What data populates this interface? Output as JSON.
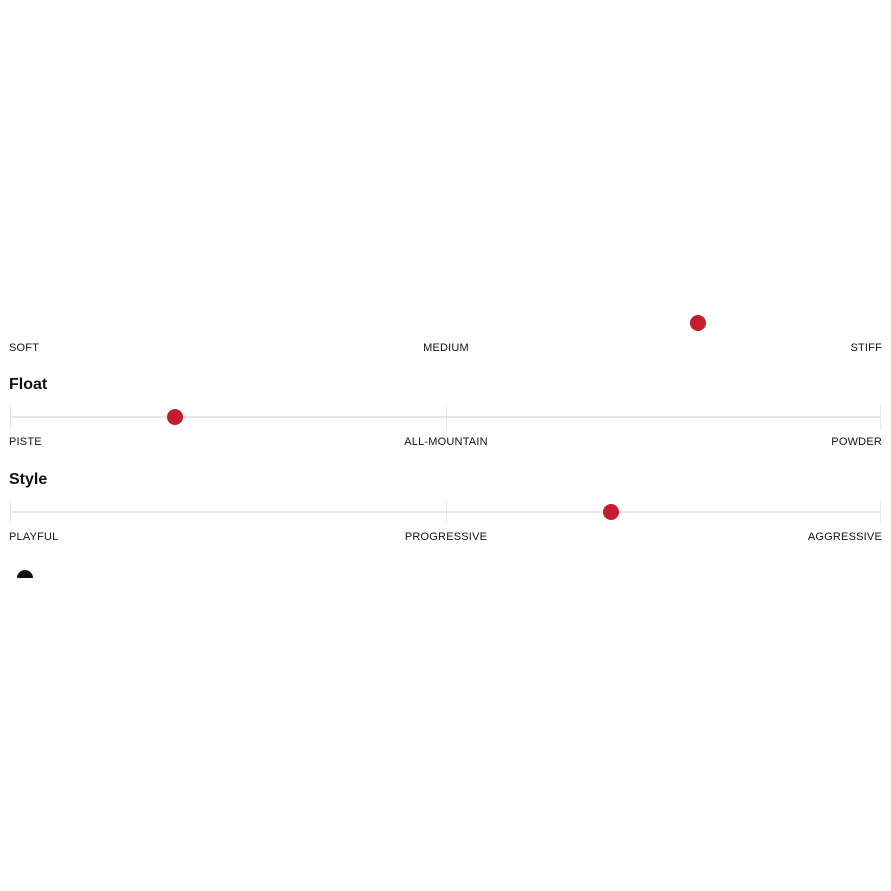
{
  "colors": {
    "accent": "#c41e2e",
    "track": "#e6e6e6"
  },
  "sliders": [
    {
      "title": "",
      "labels": [
        "SOFT",
        "MEDIUM",
        "STIFF"
      ],
      "value": 0.79,
      "track_visible": false
    },
    {
      "title": "Float",
      "labels": [
        "PISTE",
        "ALL-MOUNTAIN",
        "POWDER"
      ],
      "value": 0.19,
      "track_visible": true
    },
    {
      "title": "Style",
      "labels": [
        "PLAYFUL",
        "PROGRESSIVE",
        "AGGRESSIVE"
      ],
      "value": 0.69,
      "track_visible": true
    }
  ],
  "partial_icon": "info-icon"
}
